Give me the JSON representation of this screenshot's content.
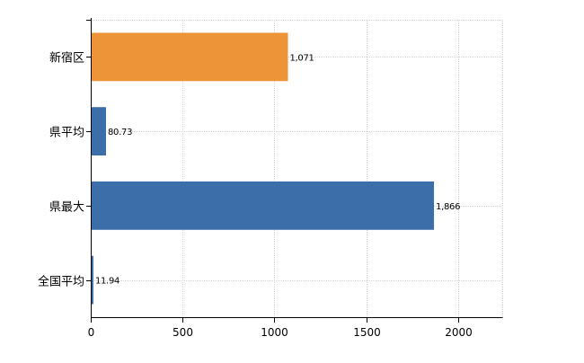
{
  "chart_data": {
    "type": "bar",
    "orientation": "horizontal",
    "categories": [
      "新宿区",
      "県平均",
      "県最大",
      "全国平均"
    ],
    "values": [
      1071,
      80.73,
      1866,
      11.94
    ],
    "value_labels": [
      "1,071",
      "80.73",
      "1,866",
      "11.94"
    ],
    "bar_colors": [
      "#ED9338",
      "#3C6EAA",
      "#3C6EAA",
      "#3C6EAA"
    ],
    "xlim": [
      0,
      2240
    ],
    "x_ticks": [
      0,
      500,
      1000,
      1500,
      2000
    ],
    "x_tick_labels": [
      "0",
      "500",
      "1000",
      "1500",
      "2000"
    ],
    "grid": true,
    "legend": "none"
  }
}
